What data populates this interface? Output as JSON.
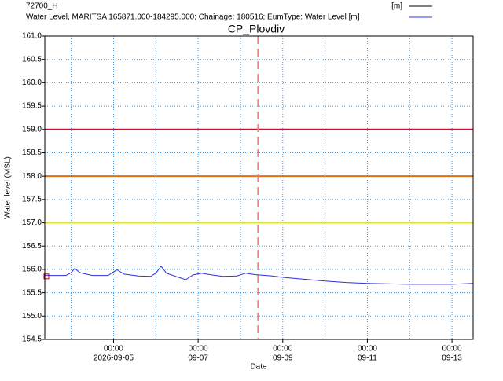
{
  "chart_data": {
    "type": "line",
    "title": "CP_Plovdiv",
    "x_label": "Date",
    "y_label": "Water level (MSL)",
    "xlim": [
      "2026-09-03 09:00",
      "2026-09-13 12:00"
    ],
    "xticks": [
      {
        "value": "2026-09-05 00:00",
        "label": [
          "00:00",
          "2026-09-05"
        ]
      },
      {
        "value": "2026-09-07 00:00",
        "label": [
          "00:00",
          "09-07"
        ]
      },
      {
        "value": "2026-09-09 00:00",
        "label": [
          "00:00",
          "09-09"
        ]
      },
      {
        "value": "2026-09-11 00:00",
        "label": [
          "00:00",
          "09-11"
        ]
      },
      {
        "value": "2026-09-13 00:00",
        "label": [
          "00:00",
          "09-13"
        ]
      }
    ],
    "xgrid": [
      "2026-09-04 00:00",
      "2026-09-05 00:00",
      "2026-09-06 00:00",
      "2026-09-07 00:00",
      "2026-09-08 00:00",
      "2026-09-09 00:00",
      "2026-09-10 00:00",
      "2026-09-11 00:00",
      "2026-09-12 00:00",
      "2026-09-13 00:00"
    ],
    "ylim": [
      154.5,
      161.0
    ],
    "yticks": [
      {
        "value": 154.5,
        "label": "154.5"
      },
      {
        "value": 155,
        "label": "155.0"
      },
      {
        "value": 155.5,
        "label": "155.5"
      },
      {
        "value": 156,
        "label": "156.0"
      },
      {
        "value": 156.5,
        "label": "156.5"
      },
      {
        "value": 157,
        "label": "157.0"
      },
      {
        "value": 157.5,
        "label": "157.5"
      },
      {
        "value": 158,
        "label": "158.0"
      },
      {
        "value": 158.5,
        "label": "158.5"
      },
      {
        "value": 159,
        "label": "159.0"
      },
      {
        "value": 159.5,
        "label": "159.5"
      },
      {
        "value": 160,
        "label": "160.0"
      },
      {
        "value": 160.5,
        "label": "160.5"
      },
      {
        "value": 161,
        "label": "161.0"
      }
    ],
    "grid": true,
    "hlines": [
      {
        "value": 159.0,
        "color": "#c8143c"
      },
      {
        "value": 158.0,
        "color": "#e07010"
      },
      {
        "value": 157.0,
        "color": "#e6e600"
      }
    ],
    "vline": {
      "x": "2026-09-08 10:00",
      "color": "#f08080"
    },
    "series": [
      {
        "name": "72700_H",
        "unit": "[m]",
        "color": "#000000",
        "marker_color": "#cc0000",
        "x": [
          "2026-09-03 09:00"
        ],
        "values": [
          155.85
        ]
      },
      {
        "name": "Water Level, MARITSA 165871.000-184295.000; Chainage: 180516; EumType: Water Level [m]",
        "color": "#3030e0",
        "x": [
          "2026-09-03 09:00",
          "2026-09-03 21:00",
          "2026-09-04 00:00",
          "2026-09-04 02:00",
          "2026-09-04 05:00",
          "2026-09-04 12:00",
          "2026-09-04 21:00",
          "2026-09-05 00:00",
          "2026-09-05 02:00",
          "2026-09-05 06:00",
          "2026-09-05 14:00",
          "2026-09-05 21:00",
          "2026-09-06 00:00",
          "2026-09-06 03:00",
          "2026-09-06 06:00",
          "2026-09-06 12:00",
          "2026-09-06 17:00",
          "2026-09-06 21:00",
          "2026-09-07 02:00",
          "2026-09-07 08:00",
          "2026-09-07 14:00",
          "2026-09-07 22:00",
          "2026-09-08 03:00",
          "2026-09-08 08:00",
          "2026-09-08 18:00",
          "2026-09-09 00:00",
          "2026-09-09 12:00",
          "2026-09-10 00:00",
          "2026-09-10 12:00",
          "2026-09-11 00:00",
          "2026-09-12 00:00",
          "2026-09-13 00:00",
          "2026-09-13 12:00"
        ],
        "values": [
          155.87,
          155.87,
          155.93,
          156.02,
          155.93,
          155.87,
          155.87,
          155.95,
          155.99,
          155.9,
          155.86,
          155.85,
          155.92,
          156.07,
          155.92,
          155.84,
          155.78,
          155.88,
          155.92,
          155.88,
          155.85,
          155.86,
          155.92,
          155.89,
          155.86,
          155.83,
          155.79,
          155.75,
          155.72,
          155.7,
          155.68,
          155.68,
          155.7
        ]
      }
    ]
  }
}
